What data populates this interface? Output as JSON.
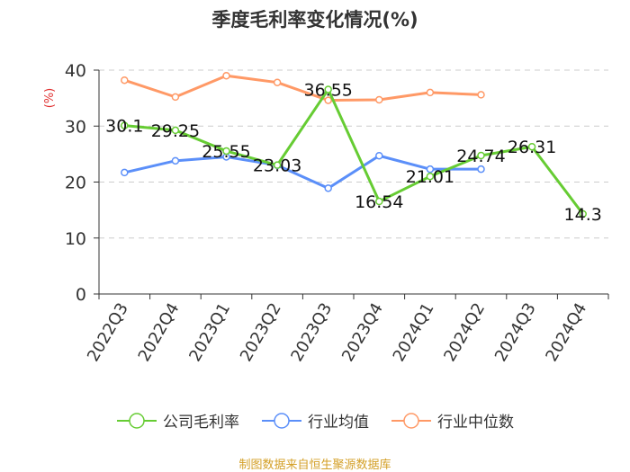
{
  "chart_data": {
    "type": "line",
    "title": "季度毛利率变化情况(%)",
    "ylabel": "(%)",
    "xlabel": "",
    "ylim": [
      0,
      40
    ],
    "yticks": [
      0,
      10,
      20,
      30,
      40
    ],
    "grid": true,
    "legend_position": "bottom",
    "categories": [
      "2022Q3",
      "2022Q4",
      "2023Q1",
      "2023Q2",
      "2023Q3",
      "2023Q4",
      "2024Q1",
      "2024Q2",
      "2024Q3",
      "2024Q4"
    ],
    "series": [
      {
        "name": "公司毛利率",
        "color": "#66cc33",
        "show_labels": true,
        "values": [
          30.1,
          29.25,
          25.55,
          23.03,
          36.55,
          16.54,
          21.01,
          24.74,
          26.31,
          14.3
        ]
      },
      {
        "name": "行业均值",
        "color": "#5b8ff9",
        "show_labels": false,
        "values": [
          21.7,
          23.8,
          24.5,
          23.0,
          18.9,
          24.7,
          22.3,
          22.3,
          null,
          null
        ]
      },
      {
        "name": "行业中位数",
        "color": "#ff9966",
        "show_labels": false,
        "values": [
          38.2,
          35.2,
          39.0,
          37.8,
          34.6,
          34.7,
          36.0,
          35.6,
          null,
          null
        ]
      }
    ]
  },
  "footer": {
    "source": "制图数据来自恒生聚源数据库"
  }
}
